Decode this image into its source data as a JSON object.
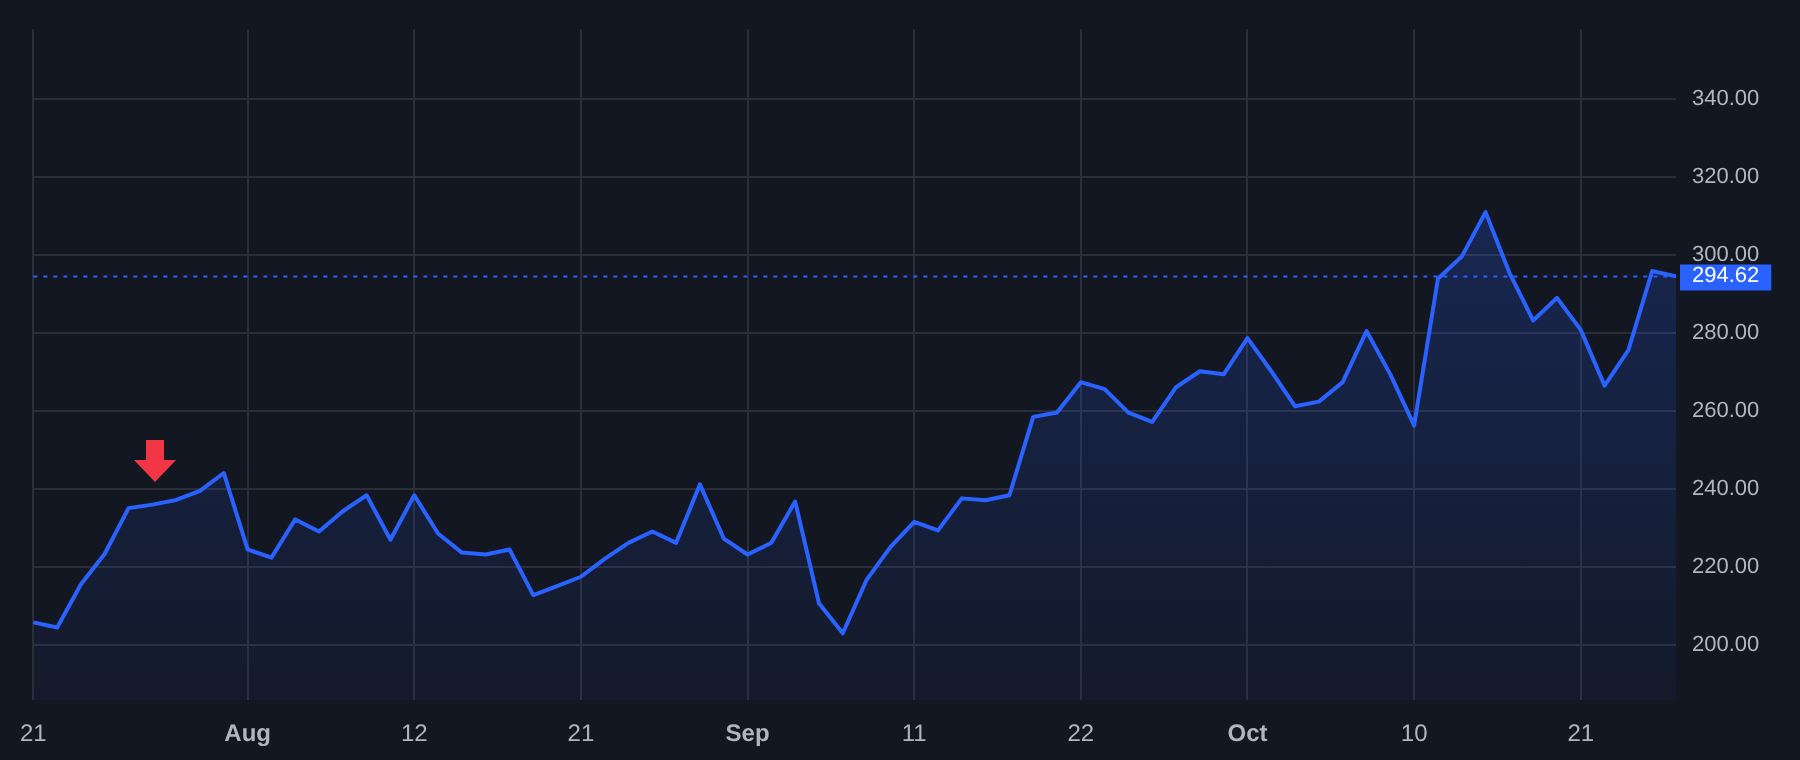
{
  "chart_data": {
    "type": "area",
    "categories": [
      "21",
      null,
      null,
      null,
      null,
      null,
      null,
      null,
      null,
      "Aug",
      null,
      null,
      null,
      null,
      null,
      null,
      "12",
      null,
      null,
      null,
      null,
      null,
      null,
      "21",
      null,
      null,
      null,
      null,
      null,
      null,
      "Sep",
      null,
      null,
      null,
      null,
      null,
      null,
      "11",
      null,
      null,
      null,
      null,
      null,
      null,
      "22",
      null,
      null,
      null,
      null,
      null,
      null,
      "Oct",
      null,
      null,
      null,
      null,
      null,
      null,
      "10",
      null,
      null,
      null,
      null,
      null,
      null,
      "21",
      null,
      null,
      null,
      null
    ],
    "series": [
      {
        "color": "#2962ff",
        "values": [
          205.9,
          204.6,
          215.7,
          223.5,
          235.2,
          236.1,
          237.3,
          239.6,
          244.2,
          224.6,
          222.5,
          232.3,
          229.2,
          234.4,
          238.5,
          227.1,
          238.5,
          228.7,
          223.8,
          223.3,
          224.6,
          212.9,
          215.2,
          217.6,
          222.2,
          226.3,
          229.2,
          226.3,
          241.3,
          227.4,
          223.3,
          226.3,
          236.9,
          210.8,
          203.1,
          216.8,
          225.2,
          231.7,
          229.5,
          237.7,
          237.2,
          238.5,
          258.6,
          259.7,
          267.5,
          265.7,
          259.7,
          257.3,
          266.2,
          270.3,
          269.5,
          278.8,
          270.3,
          261.3,
          262.5,
          267.5,
          280.6,
          269.5,
          256.4,
          294.0,
          299.7,
          311.1,
          295.6,
          283.3,
          289.1,
          280.9,
          266.6,
          275.7,
          296.0,
          294.62
        ]
      }
    ],
    "ylim": [
      186,
      358
    ],
    "yticks": [
      {
        "value": 200,
        "label": "200.00"
      },
      {
        "value": 220,
        "label": "220.00"
      },
      {
        "value": 240,
        "label": "240.00"
      },
      {
        "value": 260,
        "label": "260.00"
      },
      {
        "value": 280,
        "label": "280.00"
      },
      {
        "value": 300,
        "label": "300.00"
      },
      {
        "value": 320,
        "label": "320.00"
      },
      {
        "value": 340,
        "label": "340.00"
      }
    ],
    "grid": true,
    "legend": false,
    "marker": "none",
    "ref_lines": [
      {
        "axis": "y",
        "value": 294.62,
        "label": "294.62",
        "color": "#2962ff",
        "line_style": "dotted"
      }
    ]
  }
}
